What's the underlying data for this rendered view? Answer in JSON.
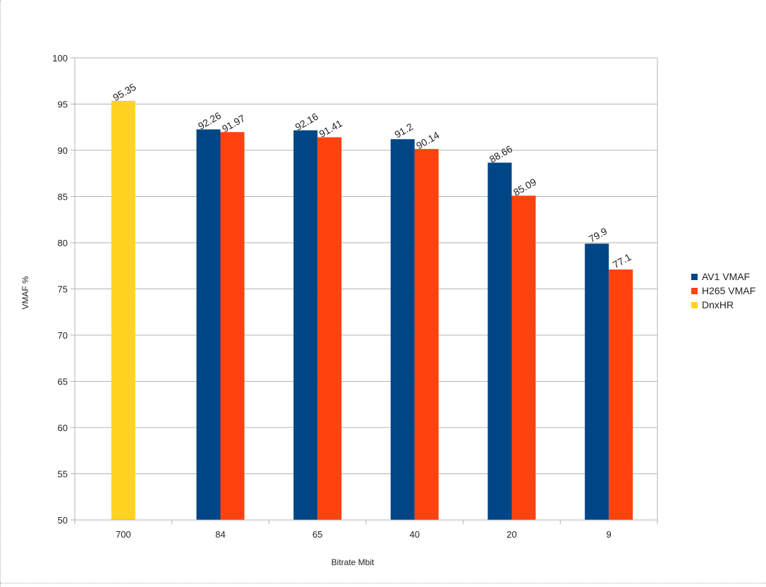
{
  "chart_data": {
    "type": "bar",
    "title": "",
    "xlabel": "Bitrate Mbit",
    "ylabel": "VMAF %",
    "ylim": [
      50,
      100
    ],
    "ytick_step": 5,
    "yticks": [
      "50",
      "55",
      "60",
      "65",
      "70",
      "75",
      "80",
      "85",
      "90",
      "95",
      "100"
    ],
    "grid": true,
    "legend_position": "right",
    "categories": [
      "700",
      "84",
      "65",
      "40",
      "20",
      "9"
    ],
    "series": [
      {
        "name": "AV1 VMAF",
        "color": "#004586",
        "values": [
          null,
          92.26,
          92.16,
          91.2,
          88.66,
          79.9
        ],
        "labels": [
          "",
          "92.26",
          "92.16",
          "91.2",
          "88.66",
          "79.9"
        ]
      },
      {
        "name": "H265 VMAF",
        "color": "#ff420e",
        "values": [
          null,
          91.97,
          91.41,
          90.14,
          85.09,
          77.1
        ],
        "labels": [
          "",
          "91.97",
          "91.41",
          "90.14",
          "85.09",
          "77.1"
        ]
      },
      {
        "name": "DnxHR",
        "color": "#ffd320",
        "values": [
          95.35,
          null,
          null,
          null,
          null,
          null
        ],
        "labels": [
          "95.35",
          "",
          "",
          "",
          "",
          ""
        ]
      }
    ]
  }
}
